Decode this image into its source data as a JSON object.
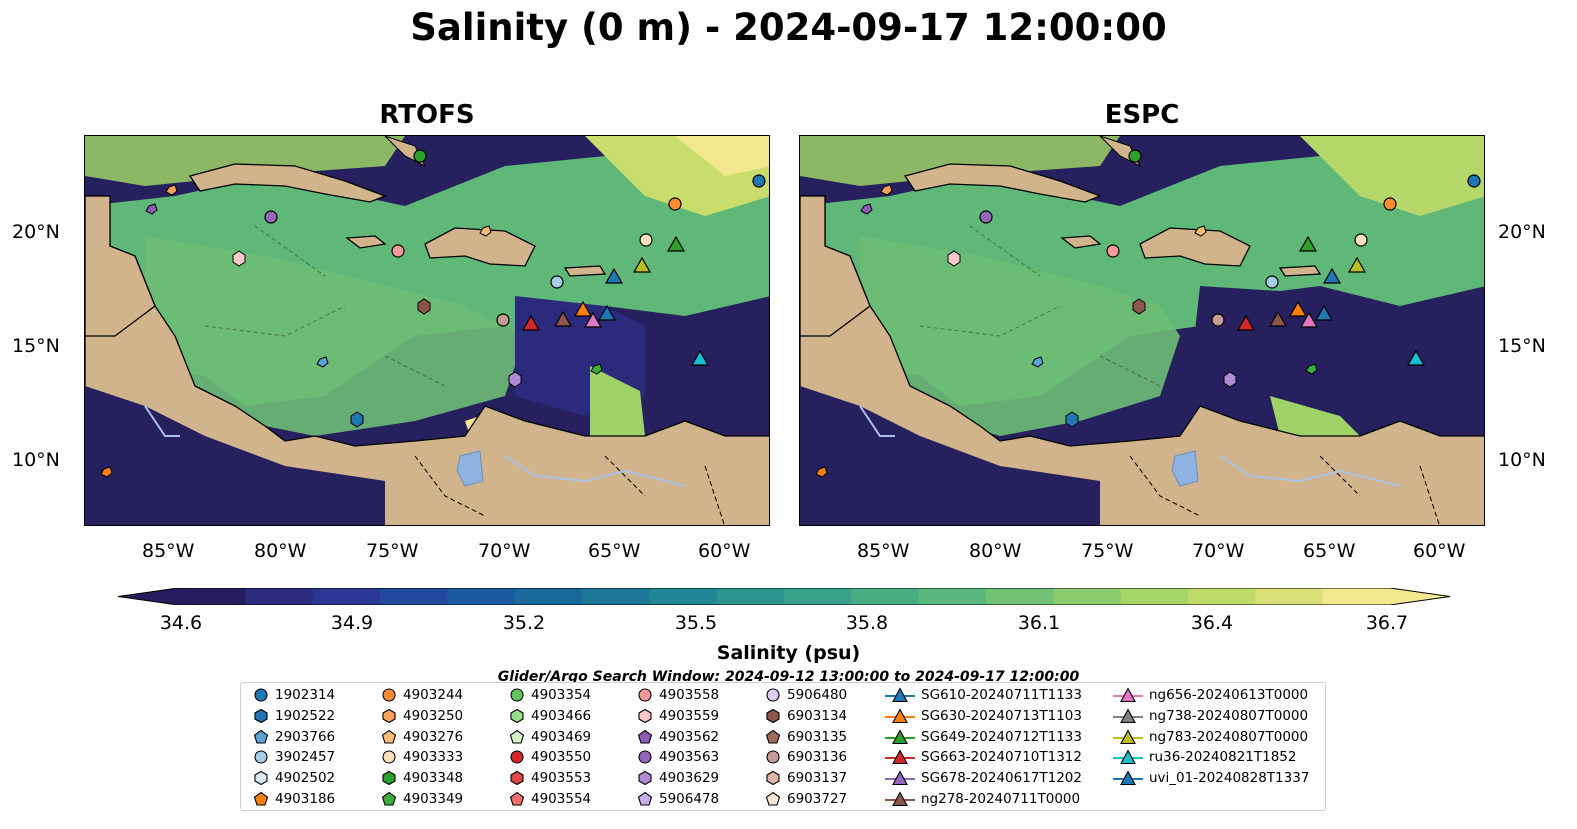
{
  "title": "Salinity (0 m) - 2024-09-17 12:00:00",
  "panels": [
    {
      "title": "RTOFS"
    },
    {
      "title": "ESPC"
    }
  ],
  "axes": {
    "y_ticks": [
      "20°N",
      "15°N",
      "10°N"
    ],
    "x_ticks": [
      "85°W",
      "80°W",
      "75°W",
      "70°W",
      "65°W",
      "60°W"
    ]
  },
  "colorbar": {
    "label": "Salinity (psu)",
    "ticks": [
      "34.6",
      "34.9",
      "35.2",
      "35.5",
      "35.8",
      "36.1",
      "36.4",
      "36.7"
    ],
    "min": 34.6,
    "max": 36.7,
    "colors": [
      "#261d5e",
      "#2c2a7c",
      "#2a3795",
      "#214a9e",
      "#1b5a9e",
      "#1a699c",
      "#1d7799",
      "#218695",
      "#2a9490",
      "#37a18a",
      "#48ad83",
      "#5bb87d",
      "#72c275",
      "#8bcb6e",
      "#a5d467",
      "#c1db6a",
      "#dae178",
      "#f3e88f"
    ]
  },
  "search_window": "Glider/Argo Search Window: 2024-09-12 13:00:00 to 2024-09-17 12:00:00",
  "legend": {
    "columns": [
      [
        {
          "label": "1902314",
          "marker": "circle",
          "color": "#1f77b4"
        },
        {
          "label": "1902522",
          "marker": "hexagon",
          "color": "#1f77b4"
        },
        {
          "label": "2903766",
          "marker": "pentagon",
          "color": "#5aa1d6"
        },
        {
          "label": "3902457",
          "marker": "circle",
          "color": "#a6cce6"
        },
        {
          "label": "4902502",
          "marker": "hexagon",
          "color": "#dcebf7"
        },
        {
          "label": "4903186",
          "marker": "pentagon",
          "color": "#ff7f0e"
        }
      ],
      [
        {
          "label": "4903244",
          "marker": "circle",
          "color": "#ff8c2e"
        },
        {
          "label": "4903250",
          "marker": "hexagon",
          "color": "#ffa15a"
        },
        {
          "label": "4903276",
          "marker": "pentagon",
          "color": "#ffbb78"
        },
        {
          "label": "4903333",
          "marker": "circle",
          "color": "#ffe0bd"
        },
        {
          "label": "4903348",
          "marker": "hexagon",
          "color": "#2ca02c"
        },
        {
          "label": "4903349",
          "marker": "pentagon",
          "color": "#3ab03a"
        }
      ],
      [
        {
          "label": "4903354",
          "marker": "circle",
          "color": "#60c760"
        },
        {
          "label": "4903466",
          "marker": "hexagon",
          "color": "#98df8a"
        },
        {
          "label": "4903469",
          "marker": "pentagon",
          "color": "#d4f5cc"
        },
        {
          "label": "4903550",
          "marker": "circle",
          "color": "#d62728"
        },
        {
          "label": "4903553",
          "marker": "hexagon",
          "color": "#e0494a"
        },
        {
          "label": "4903554",
          "marker": "pentagon",
          "color": "#f07070"
        }
      ],
      [
        {
          "label": "4903558",
          "marker": "circle",
          "color": "#f59a9a"
        },
        {
          "label": "4903559",
          "marker": "hexagon",
          "color": "#fcc8c8"
        },
        {
          "label": "4903562",
          "marker": "pentagon",
          "color": "#8c5bb8"
        },
        {
          "label": "4903563",
          "marker": "circle",
          "color": "#9467bd"
        },
        {
          "label": "4903629",
          "marker": "hexagon",
          "color": "#b08ad4"
        },
        {
          "label": "5906478",
          "marker": "pentagon",
          "color": "#c9acec"
        }
      ],
      [
        {
          "label": "5906480",
          "marker": "circle",
          "color": "#e1cdf7"
        },
        {
          "label": "6903134",
          "marker": "hexagon",
          "color": "#8c564b"
        },
        {
          "label": "6903135",
          "marker": "pentagon",
          "color": "#a06a5e"
        },
        {
          "label": "6903136",
          "marker": "circle",
          "color": "#c49c94"
        },
        {
          "label": "6903137",
          "marker": "hexagon",
          "color": "#e0b4a8"
        },
        {
          "label": "6903727",
          "marker": "pentagon",
          "color": "#fce4d8"
        }
      ],
      [
        {
          "label": "SG610-20240711T1133",
          "marker": "triangle",
          "color": "#1f77b4"
        },
        {
          "label": "SG630-20240713T1103",
          "marker": "triangle",
          "color": "#ff7f0e"
        },
        {
          "label": "SG649-20240712T1133",
          "marker": "triangle",
          "color": "#2ca02c"
        },
        {
          "label": "SG663-20240710T1312",
          "marker": "triangle",
          "color": "#d62728"
        },
        {
          "label": "SG678-20240617T1202",
          "marker": "triangle",
          "color": "#9467bd"
        },
        {
          "label": "ng278-20240711T0000",
          "marker": "triangle",
          "color": "#8c564b"
        }
      ],
      [
        {
          "label": "ng656-20240613T0000",
          "marker": "triangle",
          "color": "#e377c2"
        },
        {
          "label": "ng738-20240807T0000",
          "marker": "triangle",
          "color": "#7f7f7f"
        },
        {
          "label": "ng783-20240807T0000",
          "marker": "triangle",
          "color": "#bcbd22"
        },
        {
          "label": "ru36-20240821T1852",
          "marker": "triangle",
          "color": "#17becf"
        },
        {
          "label": "uvi_01-20240828T1337",
          "marker": "triangle",
          "color": "#1f77b4"
        }
      ]
    ]
  },
  "map_colors": {
    "land": "#d2b48c",
    "lake": "#8fb3e0",
    "high_salinity": "#eee58a",
    "mid_salinity": "#5fb878",
    "low_salinity": "#27205f"
  }
}
